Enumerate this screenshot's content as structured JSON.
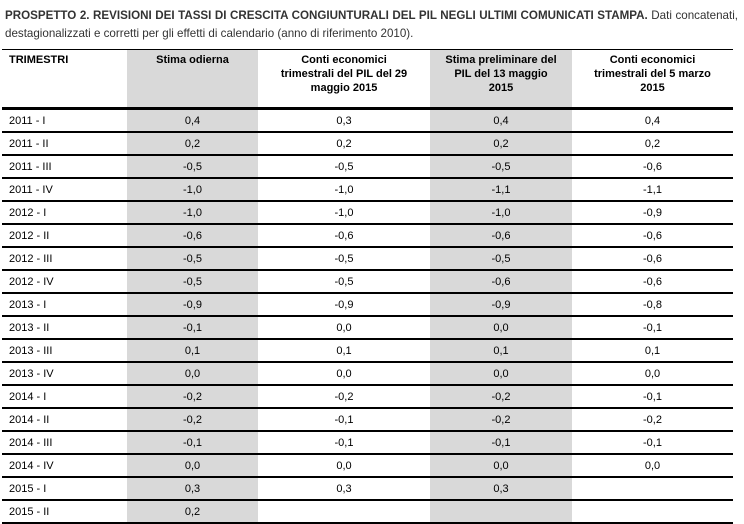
{
  "title": {
    "bold": "PROSPETTO 2. REVISIONI DEI TASSI DI CRESCITA CONGIUNTURALI DEL PIL NEGLI ULTIMI COMUNICATI STAMPA.",
    "rest": " Dati concatenati, destagionalizzati e corretti per gli effetti di calendario (anno di riferimento 2010)."
  },
  "table": {
    "columns": [
      {
        "label": "TRIMESTRI",
        "shaded": false
      },
      {
        "label": "Stima odierna",
        "shaded": true
      },
      {
        "label": "Conti economici\ntrimestrali del PIL del 29\nmaggio 2015",
        "shaded": false
      },
      {
        "label": "Stima preliminare del\nPIL del 13 maggio\n2015",
        "shaded": true
      },
      {
        "label": "Conti economici\ntrimestrali del 5 marzo\n2015",
        "shaded": false
      }
    ],
    "rows": [
      {
        "trimestre": "2011 - I",
        "values": [
          "0,4",
          "0,3",
          "0,4",
          "0,4"
        ]
      },
      {
        "trimestre": "2011 - II",
        "values": [
          "0,2",
          "0,2",
          "0,2",
          "0,2"
        ]
      },
      {
        "trimestre": "2011 - III",
        "values": [
          "-0,5",
          "-0,5",
          "-0,5",
          "-0,6"
        ]
      },
      {
        "trimestre": "2011 - IV",
        "values": [
          "-1,0",
          "-1,0",
          "-1,1",
          "-1,1"
        ]
      },
      {
        "trimestre": "2012 - I",
        "values": [
          "-1,0",
          "-1,0",
          "-1,0",
          "-0,9"
        ]
      },
      {
        "trimestre": "2012 - II",
        "values": [
          "-0,6",
          "-0,6",
          "-0,6",
          "-0,6"
        ]
      },
      {
        "trimestre": "2012 - III",
        "values": [
          "-0,5",
          "-0,5",
          "-0,5",
          "-0,6"
        ]
      },
      {
        "trimestre": "2012 - IV",
        "values": [
          "-0,5",
          "-0,5",
          "-0,6",
          "-0,6"
        ]
      },
      {
        "trimestre": "2013 - I",
        "values": [
          "-0,9",
          "-0,9",
          "-0,9",
          "-0,8"
        ]
      },
      {
        "trimestre": "2013 - II",
        "values": [
          "-0,1",
          "0,0",
          "0,0",
          "-0,1"
        ]
      },
      {
        "trimestre": "2013 - III",
        "values": [
          "0,1",
          "0,1",
          "0,1",
          "0,1"
        ]
      },
      {
        "trimestre": "2013 - IV",
        "values": [
          "0,0",
          "0,0",
          "0,0",
          "0,0"
        ]
      },
      {
        "trimestre": "2014 - I",
        "values": [
          "-0,2",
          "-0,2",
          "-0,2",
          "-0,1"
        ]
      },
      {
        "trimestre": "2014 - II",
        "values": [
          "-0,2",
          "-0,1",
          "-0,2",
          "-0,2"
        ]
      },
      {
        "trimestre": "2014 - III",
        "values": [
          "-0,1",
          "-0,1",
          "-0,1",
          "-0,1"
        ]
      },
      {
        "trimestre": "2014 - IV",
        "values": [
          "0,0",
          "0,0",
          "0,0",
          "0,0"
        ]
      },
      {
        "trimestre": "2015 - I",
        "values": [
          "0,3",
          "0,3",
          "0,3",
          ""
        ]
      },
      {
        "trimestre": "2015 - II",
        "values": [
          "0,2",
          "",
          "",
          ""
        ]
      }
    ]
  },
  "colors": {
    "shaded_column": "#d9d9d9",
    "border": "#000000",
    "table_text": "#000000",
    "title_text": "#333333"
  }
}
